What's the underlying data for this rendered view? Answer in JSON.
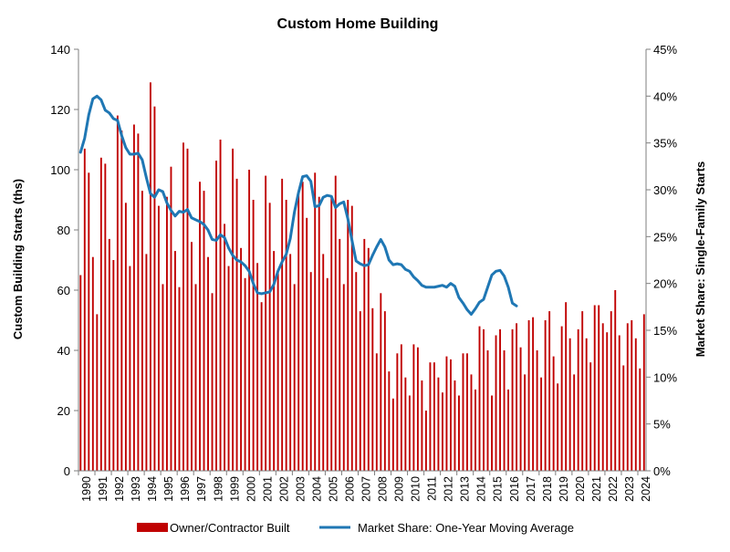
{
  "chart_data": {
    "type": "bar+line",
    "title": "Custom Home Building",
    "ylabel_left": "Custom Building Starts (ths)",
    "ylabel_right": "Market Share: Single-Family Starts",
    "ylim_left": [
      0,
      140
    ],
    "ylim_right": [
      0,
      45
    ],
    "yticks_left": [
      "0",
      "20",
      "40",
      "60",
      "80",
      "100",
      "120",
      "140"
    ],
    "yticks_right": [
      "0%",
      "5%",
      "10%",
      "15%",
      "20%",
      "25%",
      "30%",
      "35%",
      "40%",
      "45%"
    ],
    "x_tick_labels": [
      "1990",
      "1991",
      "1992",
      "1993",
      "1994",
      "1995",
      "1996",
      "1997",
      "1998",
      "1999",
      "2000",
      "2001",
      "2002",
      "2003",
      "2004",
      "2005",
      "2006",
      "2007",
      "2008",
      "2009",
      "2010",
      "2011",
      "2012",
      "2013",
      "2014",
      "2015",
      "2016",
      "2017",
      "2018",
      "2019",
      "2020",
      "2021",
      "2022",
      "2023",
      "2024"
    ],
    "x_periods": "quarterly, 1990 Q1 to 2024 Q2",
    "legend_position": "bottom",
    "grid": false,
    "colors": {
      "bars": "#C00000",
      "line": "#1F77B4"
    },
    "series": [
      {
        "name": "Owner/Contractor Built",
        "kind": "bar",
        "axis": "left",
        "values": [
          65,
          107,
          99,
          71,
          52,
          104,
          102,
          77,
          70,
          118,
          113,
          89,
          68,
          115,
          112,
          93,
          72,
          129,
          121,
          88,
          62,
          91,
          101,
          73,
          61,
          109,
          107,
          76,
          62,
          96,
          93,
          71,
          59,
          103,
          110,
          82,
          68,
          107,
          97,
          74,
          64,
          100,
          90,
          69,
          56,
          98,
          89,
          73,
          66,
          97,
          90,
          72,
          62,
          93,
          96,
          84,
          66,
          99,
          91,
          72,
          64,
          91,
          98,
          77,
          62,
          90,
          88,
          66,
          53,
          77,
          74,
          54,
          39,
          59,
          53,
          33,
          24,
          39,
          42,
          31,
          25,
          42,
          41,
          30,
          20,
          36,
          36,
          31,
          26,
          38,
          37,
          30,
          25,
          39,
          39,
          32,
          27,
          48,
          47,
          40,
          25,
          45,
          47,
          40,
          27,
          47,
          49,
          41,
          32,
          50,
          51,
          40,
          31,
          50,
          53,
          38,
          29,
          48,
          56,
          44,
          32,
          47,
          53,
          44,
          36,
          55,
          55,
          49,
          46,
          53,
          60,
          45,
          35,
          49,
          50,
          44,
          34,
          52
        ]
      },
      {
        "name": "Market Share: One-Year Moving Average",
        "kind": "line",
        "axis": "right",
        "values": [
          34.0,
          35.5,
          38.0,
          39.7,
          40.0,
          39.6,
          38.5,
          38.2,
          37.6,
          37.4,
          35.8,
          34.5,
          33.8,
          33.8,
          33.9,
          33.2,
          31.3,
          29.6,
          29.2,
          30.0,
          29.8,
          28.6,
          27.8,
          27.2,
          27.7,
          27.6,
          27.9,
          27.0,
          26.8,
          26.6,
          26.3,
          25.7,
          24.7,
          24.6,
          25.2,
          24.9,
          23.8,
          23.0,
          22.5,
          22.3,
          21.9,
          21.3,
          20.0,
          19.0,
          18.9,
          19.0,
          19.1,
          19.9,
          21.3,
          22.3,
          23.1,
          24.8,
          27.6,
          29.7,
          31.4,
          31.5,
          30.9,
          28.2,
          28.3,
          29.2,
          29.4,
          29.3,
          28.1,
          28.5,
          28.7,
          26.9,
          24.6,
          22.4,
          22.1,
          21.9,
          22.0,
          23.0,
          23.9,
          24.7,
          23.9,
          22.5,
          22.0,
          22.1,
          22.0,
          21.5,
          21.3,
          20.7,
          20.3,
          19.8,
          19.6,
          19.6,
          19.6,
          19.7,
          19.8,
          19.6,
          20.0,
          19.7,
          18.5,
          17.9,
          17.2,
          16.7,
          17.3,
          18.0,
          18.3,
          19.6,
          20.9,
          21.3,
          21.4,
          20.8,
          19.6,
          17.9,
          17.6
        ]
      }
    ]
  }
}
